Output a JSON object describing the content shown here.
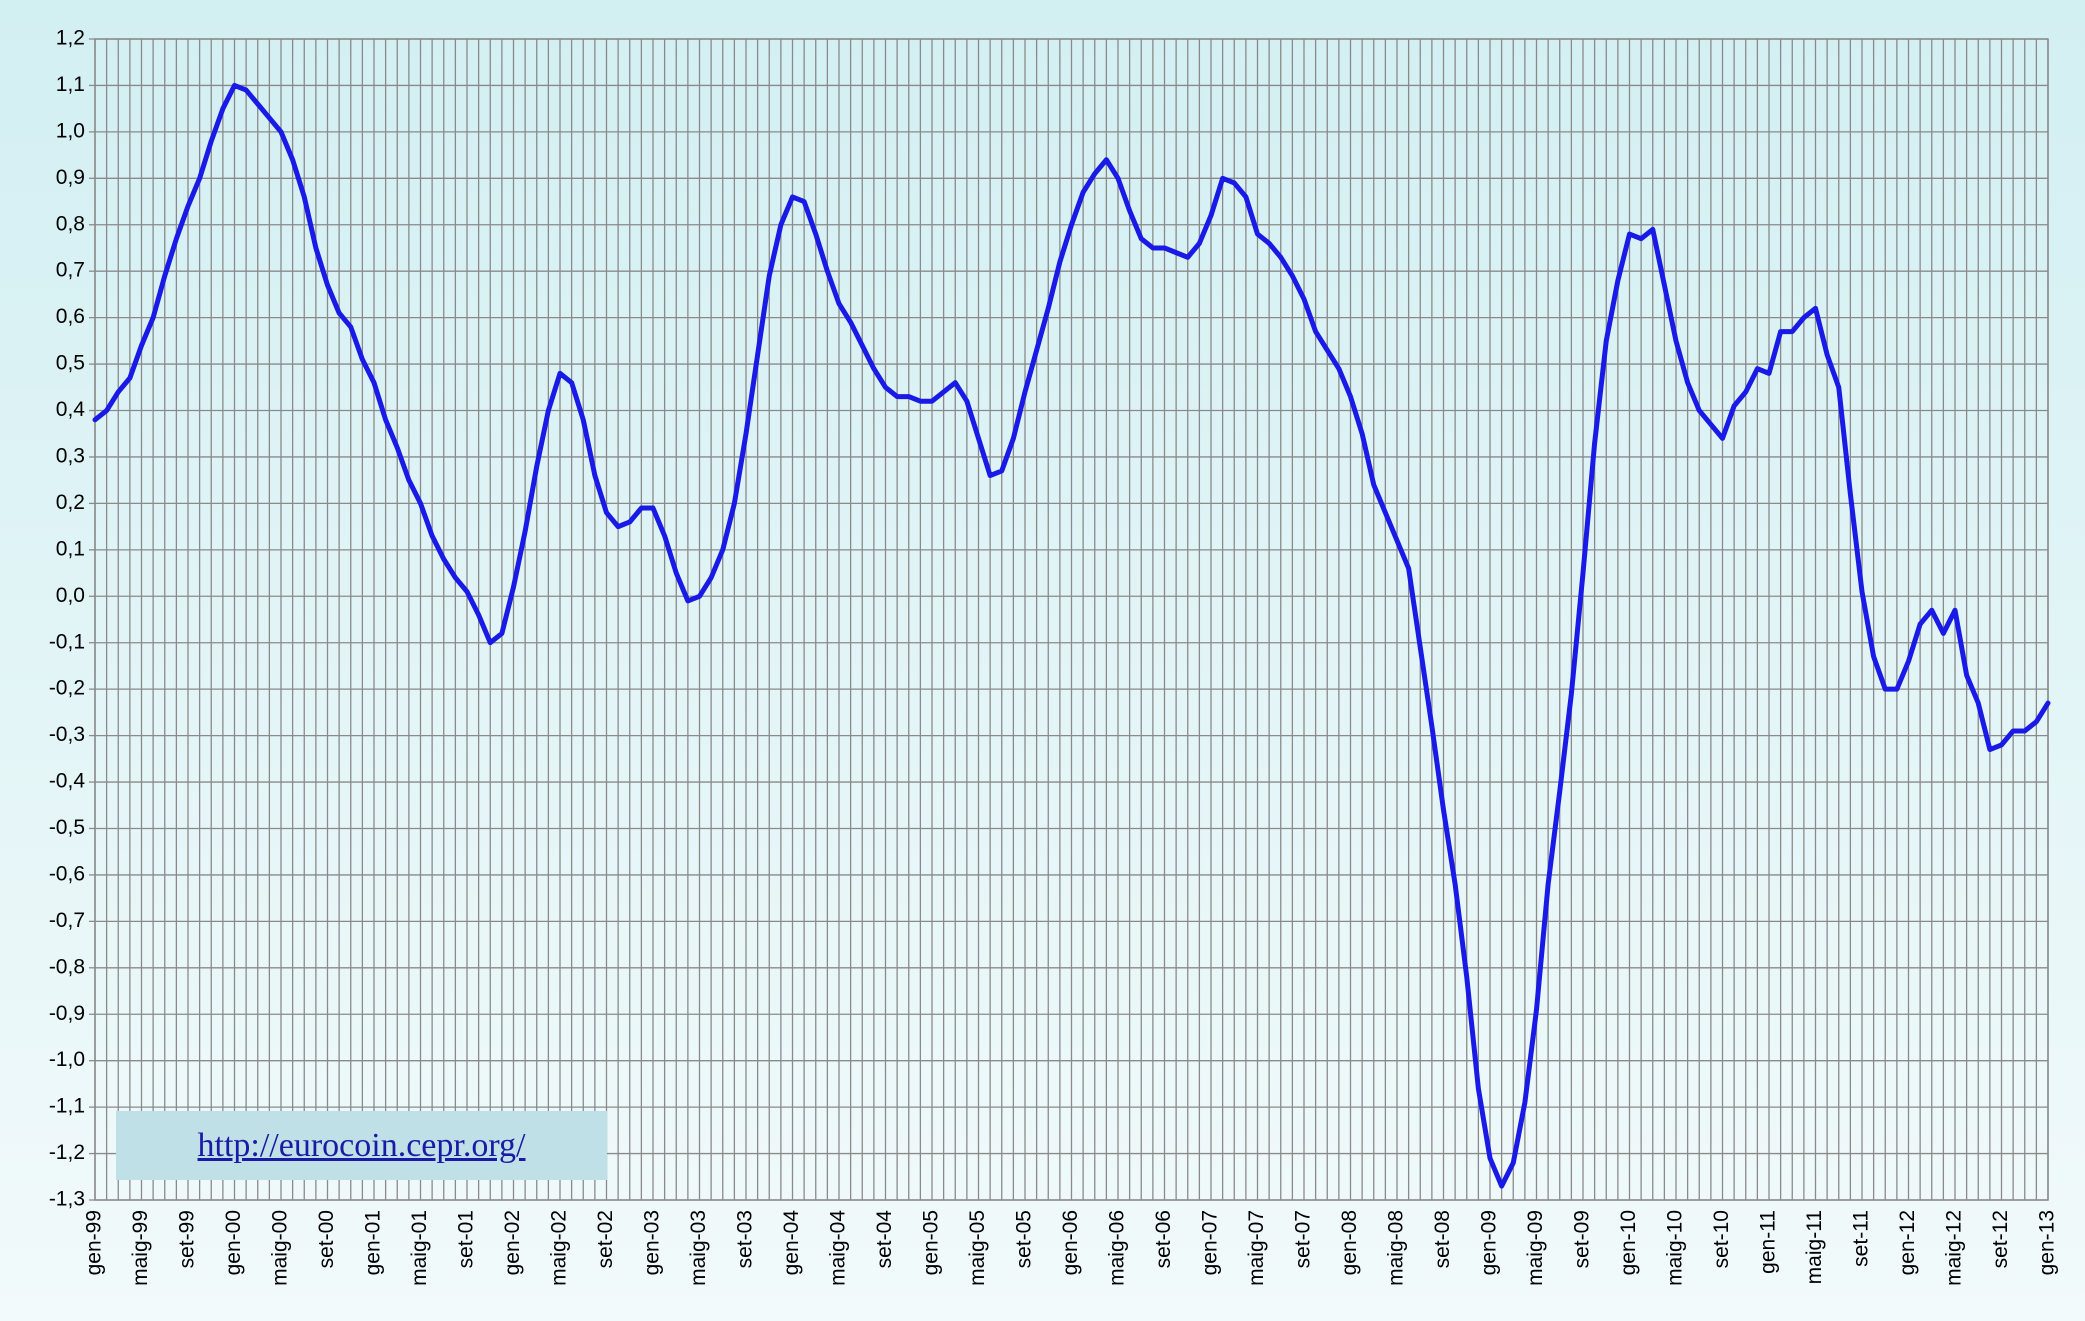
{
  "chart_data": {
    "type": "line",
    "categories": [
      "gen-99",
      null,
      null,
      null,
      "maig-99",
      null,
      null,
      null,
      "set-99",
      null,
      null,
      null,
      "gen-00",
      null,
      null,
      null,
      "maig-00",
      null,
      null,
      null,
      "set-00",
      null,
      null,
      null,
      "gen-01",
      null,
      null,
      null,
      "maig-01",
      null,
      null,
      null,
      "set-01",
      null,
      null,
      null,
      "gen-02",
      null,
      null,
      null,
      "maig-02",
      null,
      null,
      null,
      "set-02",
      null,
      null,
      null,
      "gen-03",
      null,
      null,
      null,
      "maig-03",
      null,
      null,
      null,
      "set-03",
      null,
      null,
      null,
      "gen-04",
      null,
      null,
      null,
      "maig-04",
      null,
      null,
      null,
      "set-04",
      null,
      null,
      null,
      "gen-05",
      null,
      null,
      null,
      "maig-05",
      null,
      null,
      null,
      "set-05",
      null,
      null,
      null,
      "gen-06",
      null,
      null,
      null,
      "maig-06",
      null,
      null,
      null,
      "set-06",
      null,
      null,
      null,
      "gen-07",
      null,
      null,
      null,
      "maig-07",
      null,
      null,
      null,
      "set-07",
      null,
      null,
      null,
      "gen-08",
      null,
      null,
      null,
      "maig-08",
      null,
      null,
      null,
      "set-08",
      null,
      null,
      null,
      "gen-09",
      null,
      null,
      null,
      "maig-09",
      null,
      null,
      null,
      "set-09",
      null,
      null,
      null,
      "gen-10",
      null,
      null,
      null,
      "maig-10",
      null,
      null,
      null,
      "set-10",
      null,
      null,
      null,
      "gen-11",
      null,
      null,
      null,
      "maig-11",
      null,
      null,
      null,
      "set-11",
      null,
      null,
      null,
      "gen-12",
      null,
      null,
      null,
      "maig-12",
      null,
      null,
      null,
      "set-12",
      null,
      null,
      null,
      "gen-13"
    ],
    "values": [
      0.38,
      0.4,
      0.44,
      0.47,
      0.54,
      0.6,
      0.69,
      0.77,
      0.84,
      0.9,
      0.98,
      1.05,
      1.1,
      1.09,
      1.06,
      1.03,
      1.0,
      0.94,
      0.86,
      0.75,
      0.67,
      0.61,
      0.58,
      0.51,
      0.46,
      0.38,
      0.32,
      0.25,
      0.2,
      0.13,
      0.08,
      0.04,
      0.01,
      -0.04,
      -0.1,
      -0.08,
      0.02,
      0.14,
      0.28,
      0.4,
      0.48,
      0.46,
      0.38,
      0.26,
      0.18,
      0.15,
      0.16,
      0.19,
      0.19,
      0.13,
      0.05,
      -0.01,
      0.0,
      0.04,
      0.1,
      0.2,
      0.35,
      0.52,
      0.69,
      0.8,
      0.86,
      0.85,
      0.78,
      0.7,
      0.63,
      0.59,
      0.54,
      0.49,
      0.45,
      0.43,
      0.43,
      0.42,
      0.42,
      0.44,
      0.46,
      0.42,
      0.34,
      0.26,
      0.27,
      0.34,
      0.44,
      0.53,
      0.62,
      0.72,
      0.8,
      0.87,
      0.91,
      0.94,
      0.9,
      0.83,
      0.77,
      0.75,
      0.75,
      0.74,
      0.73,
      0.76,
      0.82,
      0.9,
      0.89,
      0.86,
      0.78,
      0.76,
      0.73,
      0.69,
      0.64,
      0.57,
      0.53,
      0.49,
      0.43,
      0.35,
      0.24,
      0.18,
      0.12,
      0.06,
      -0.11,
      -0.28,
      -0.46,
      -0.62,
      -0.82,
      -1.06,
      -1.21,
      -1.27,
      -1.22,
      -1.09,
      -0.89,
      -0.62,
      -0.42,
      -0.21,
      0.05,
      0.33,
      0.55,
      0.68,
      0.78,
      0.77,
      0.79,
      0.67,
      0.55,
      0.46,
      0.4,
      0.37,
      0.34,
      0.41,
      0.44,
      0.49,
      0.48,
      0.57,
      0.57,
      0.6,
      0.62,
      0.52,
      0.45,
      0.22,
      0.01,
      -0.13,
      -0.2,
      -0.2,
      -0.14,
      -0.06,
      -0.03,
      -0.08,
      -0.03,
      -0.17,
      -0.23,
      -0.33,
      -0.32,
      -0.29,
      -0.29,
      -0.27,
      -0.23
    ],
    "color": "#1a1ae6",
    "ylim": [
      -1.3,
      1.2
    ],
    "yticks": [
      {
        "value": 1.2,
        "label": "1,2"
      },
      {
        "value": 1.1,
        "label": "1,1"
      },
      {
        "value": 1.0,
        "label": "1,0"
      },
      {
        "value": 0.9,
        "label": "0,9"
      },
      {
        "value": 0.8,
        "label": "0,8"
      },
      {
        "value": 0.7,
        "label": "0,7"
      },
      {
        "value": 0.6,
        "label": "0,6"
      },
      {
        "value": 0.5,
        "label": "0,5"
      },
      {
        "value": 0.4,
        "label": "0,4"
      },
      {
        "value": 0.3,
        "label": "0,3"
      },
      {
        "value": 0.2,
        "label": "0,2"
      },
      {
        "value": 0.1,
        "label": "0,1"
      },
      {
        "value": 0,
        "label": "0,0"
      },
      {
        "value": -0.1,
        "label": "-0,1"
      },
      {
        "value": -0.2,
        "label": "-0,2"
      },
      {
        "value": -0.3,
        "label": "-0,3"
      },
      {
        "value": -0.4,
        "label": "-0,4"
      },
      {
        "value": -0.5,
        "label": "-0,5"
      },
      {
        "value": -0.6,
        "label": "-0,6"
      },
      {
        "value": -0.7,
        "label": "-0,7"
      },
      {
        "value": -0.8,
        "label": "-0,8"
      },
      {
        "value": -0.9,
        "label": "-0,9"
      },
      {
        "value": -1.0,
        "label": "-1,0"
      },
      {
        "value": -1.1,
        "label": "-1,1"
      },
      {
        "value": -1.2,
        "label": "-1,2"
      },
      {
        "value": -1.3,
        "label": "-1,3"
      }
    ],
    "grid": true,
    "reference_lines": [
      {
        "value": 0,
        "color": "#e00000"
      }
    ],
    "annotation": "http://eurocoin.cepr.org/"
  }
}
